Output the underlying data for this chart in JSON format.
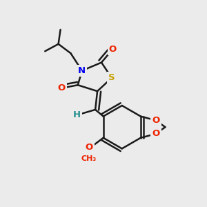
{
  "bg_color": "#ebebeb",
  "bond_color": "#1a1a1a",
  "bond_width": 1.8,
  "colors": {
    "S": "#c8a000",
    "N": "#0000ee",
    "O": "#ee2200",
    "C": "#1a1a1a",
    "H": "#2a9090",
    "bond": "#1a1a1a"
  }
}
